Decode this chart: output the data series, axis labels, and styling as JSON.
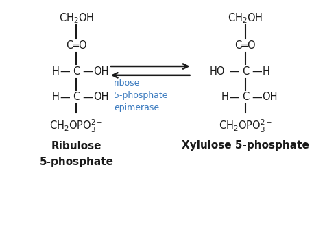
{
  "bg_color": "#ffffff",
  "text_color": "#1a1a1a",
  "blue_color": "#3a7abf",
  "fig_width": 4.74,
  "fig_height": 3.55,
  "dpi": 100,
  "enzyme_line1": "ribose",
  "enzyme_line2": "5-phosphate",
  "enzyme_line3": "epimerase",
  "left_name1": "Ribulose",
  "left_name2": "5-phosphate",
  "right_name1": "Xylulose 5-phosphate"
}
